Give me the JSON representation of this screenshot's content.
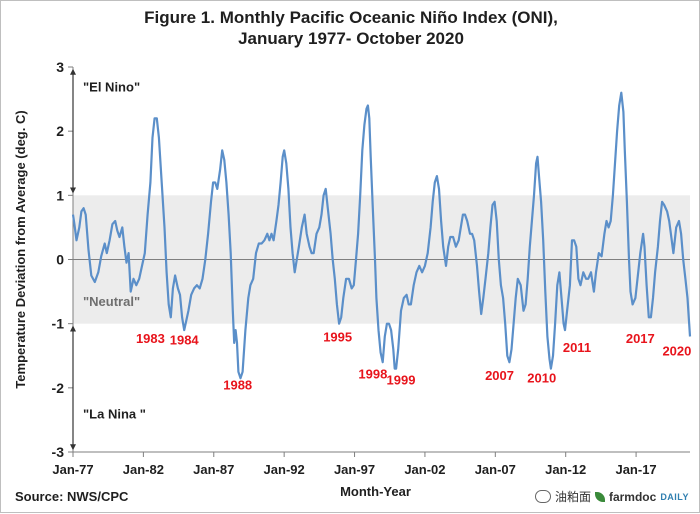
{
  "title_line1": "Figure 1. Monthly Pacific Oceanic Niño Index (ONI),",
  "title_line2": "January 1977- October 2020",
  "source": "Source: NWS/CPC",
  "watermark": "油粕面",
  "brand_name": "farmdoc",
  "brand_suffix": "DAILY",
  "colors": {
    "line": "#5b8fc9",
    "annotation": "#e8141c",
    "neutral_band": "#ececec",
    "arrow": "#333333"
  },
  "chart_data": {
    "type": "line",
    "title": "Figure 1. Monthly Pacific Oceanic Niño Index (ONI), January 1977- October 2020",
    "xlabel": "Month-Year",
    "ylabel": "Temperature Deviation from Average (deg. C)",
    "ylim": [
      -3,
      3
    ],
    "yticks": [
      -3,
      -2,
      -1,
      0,
      1,
      2,
      3
    ],
    "xlim": [
      1977.0,
      2020.83
    ],
    "xticks": [
      {
        "value": 1977,
        "label": "Jan-77"
      },
      {
        "value": 1982,
        "label": "Jan-82"
      },
      {
        "value": 1987,
        "label": "Jan-87"
      },
      {
        "value": 1992,
        "label": "Jan-92"
      },
      {
        "value": 1997,
        "label": "Jan-97"
      },
      {
        "value": 2002,
        "label": "Jan-02"
      },
      {
        "value": 2007,
        "label": "Jan-07"
      },
      {
        "value": 2012,
        "label": "Jan-12"
      },
      {
        "value": 2017,
        "label": "Jan-17"
      }
    ],
    "neutral_band": [
      -1,
      1
    ],
    "zones": [
      {
        "label": "\"El Nino\"",
        "y": 2.7
      },
      {
        "label": "\"Neutral\"",
        "y": -0.65
      },
      {
        "label": "\"La Nina \"",
        "y": -2.4
      }
    ],
    "zone_arrows": [
      [
        3,
        1
      ],
      [
        -1,
        -3
      ]
    ],
    "annotations": [
      {
        "label": "1983",
        "x": 1982.5,
        "y": -1.22
      },
      {
        "label": "1984",
        "x": 1984.9,
        "y": -1.25
      },
      {
        "label": "1988",
        "x": 1988.7,
        "y": -1.95
      },
      {
        "label": "1995",
        "x": 1995.8,
        "y": -1.2
      },
      {
        "label": "1998",
        "x": 1998.3,
        "y": -1.78
      },
      {
        "label": "1999",
        "x": 2000.3,
        "y": -1.87
      },
      {
        "label": "2007",
        "x": 2007.3,
        "y": -1.8
      },
      {
        "label": "2010",
        "x": 2010.3,
        "y": -1.84
      },
      {
        "label": "2011",
        "x": 2012.8,
        "y": -1.36
      },
      {
        "label": "2017",
        "x": 2017.3,
        "y": -1.22
      },
      {
        "label": "2020",
        "x": 2019.9,
        "y": -1.42
      }
    ],
    "series": [
      {
        "name": "ONI",
        "points": [
          [
            1977.0,
            0.7
          ],
          [
            1977.1,
            0.55
          ],
          [
            1977.25,
            0.3
          ],
          [
            1977.45,
            0.5
          ],
          [
            1977.6,
            0.75
          ],
          [
            1977.75,
            0.8
          ],
          [
            1977.9,
            0.7
          ],
          [
            1978.1,
            0.15
          ],
          [
            1978.3,
            -0.25
          ],
          [
            1978.55,
            -0.35
          ],
          [
            1978.8,
            -0.2
          ],
          [
            1979.0,
            0.05
          ],
          [
            1979.25,
            0.25
          ],
          [
            1979.4,
            0.1
          ],
          [
            1979.6,
            0.3
          ],
          [
            1979.8,
            0.55
          ],
          [
            1980.0,
            0.6
          ],
          [
            1980.15,
            0.45
          ],
          [
            1980.3,
            0.35
          ],
          [
            1980.5,
            0.5
          ],
          [
            1980.65,
            0.2
          ],
          [
            1980.8,
            -0.05
          ],
          [
            1980.95,
            0.1
          ],
          [
            1981.1,
            -0.5
          ],
          [
            1981.3,
            -0.3
          ],
          [
            1981.5,
            -0.4
          ],
          [
            1981.7,
            -0.3
          ],
          [
            1981.9,
            -0.1
          ],
          [
            1982.1,
            0.1
          ],
          [
            1982.3,
            0.7
          ],
          [
            1982.5,
            1.2
          ],
          [
            1982.65,
            1.9
          ],
          [
            1982.8,
            2.2
          ],
          [
            1982.95,
            2.2
          ],
          [
            1983.1,
            1.9
          ],
          [
            1983.3,
            1.2
          ],
          [
            1983.5,
            0.5
          ],
          [
            1983.65,
            -0.2
          ],
          [
            1983.8,
            -0.7
          ],
          [
            1983.95,
            -0.9
          ],
          [
            1984.1,
            -0.45
          ],
          [
            1984.25,
            -0.25
          ],
          [
            1984.45,
            -0.45
          ],
          [
            1984.6,
            -0.55
          ],
          [
            1984.75,
            -0.9
          ],
          [
            1984.9,
            -1.1
          ],
          [
            1985.05,
            -0.95
          ],
          [
            1985.2,
            -0.8
          ],
          [
            1985.4,
            -0.55
          ],
          [
            1985.6,
            -0.45
          ],
          [
            1985.8,
            -0.4
          ],
          [
            1986.0,
            -0.45
          ],
          [
            1986.2,
            -0.3
          ],
          [
            1986.4,
            0.0
          ],
          [
            1986.6,
            0.4
          ],
          [
            1986.8,
            0.9
          ],
          [
            1986.95,
            1.2
          ],
          [
            1987.1,
            1.2
          ],
          [
            1987.25,
            1.1
          ],
          [
            1987.45,
            1.4
          ],
          [
            1987.6,
            1.7
          ],
          [
            1987.75,
            1.55
          ],
          [
            1987.9,
            1.2
          ],
          [
            1988.05,
            0.7
          ],
          [
            1988.2,
            0.1
          ],
          [
            1988.35,
            -0.8
          ],
          [
            1988.45,
            -1.3
          ],
          [
            1988.55,
            -1.1
          ],
          [
            1988.65,
            -1.3
          ],
          [
            1988.75,
            -1.75
          ],
          [
            1988.9,
            -1.85
          ],
          [
            1989.05,
            -1.75
          ],
          [
            1989.25,
            -1.1
          ],
          [
            1989.45,
            -0.6
          ],
          [
            1989.6,
            -0.4
          ],
          [
            1989.8,
            -0.3
          ],
          [
            1990.0,
            0.1
          ],
          [
            1990.2,
            0.25
          ],
          [
            1990.4,
            0.25
          ],
          [
            1990.6,
            0.3
          ],
          [
            1990.8,
            0.4
          ],
          [
            1990.95,
            0.3
          ],
          [
            1991.1,
            0.4
          ],
          [
            1991.25,
            0.3
          ],
          [
            1991.45,
            0.6
          ],
          [
            1991.6,
            0.85
          ],
          [
            1991.75,
            1.2
          ],
          [
            1991.9,
            1.6
          ],
          [
            1992.0,
            1.7
          ],
          [
            1992.15,
            1.5
          ],
          [
            1992.3,
            1.1
          ],
          [
            1992.45,
            0.5
          ],
          [
            1992.6,
            0.1
          ],
          [
            1992.75,
            -0.2
          ],
          [
            1992.9,
            0.0
          ],
          [
            1993.05,
            0.2
          ],
          [
            1993.25,
            0.5
          ],
          [
            1993.45,
            0.7
          ],
          [
            1993.6,
            0.4
          ],
          [
            1993.8,
            0.2
          ],
          [
            1993.95,
            0.1
          ],
          [
            1994.1,
            0.1
          ],
          [
            1994.3,
            0.4
          ],
          [
            1994.5,
            0.5
          ],
          [
            1994.65,
            0.7
          ],
          [
            1994.8,
            1.0
          ],
          [
            1994.95,
            1.1
          ],
          [
            1995.1,
            0.8
          ],
          [
            1995.3,
            0.4
          ],
          [
            1995.45,
            0.0
          ],
          [
            1995.6,
            -0.3
          ],
          [
            1995.75,
            -0.7
          ],
          [
            1995.9,
            -1.0
          ],
          [
            1996.05,
            -0.9
          ],
          [
            1996.2,
            -0.6
          ],
          [
            1996.4,
            -0.3
          ],
          [
            1996.6,
            -0.3
          ],
          [
            1996.8,
            -0.45
          ],
          [
            1996.95,
            -0.4
          ],
          [
            1997.1,
            0.0
          ],
          [
            1997.25,
            0.4
          ],
          [
            1997.4,
            1.0
          ],
          [
            1997.55,
            1.7
          ],
          [
            1997.7,
            2.1
          ],
          [
            1997.85,
            2.35
          ],
          [
            1997.95,
            2.4
          ],
          [
            1998.05,
            2.2
          ],
          [
            1998.15,
            1.6
          ],
          [
            1998.3,
            0.8
          ],
          [
            1998.45,
            0.0
          ],
          [
            1998.55,
            -0.6
          ],
          [
            1998.7,
            -1.1
          ],
          [
            1998.85,
            -1.45
          ],
          [
            1999.0,
            -1.6
          ],
          [
            1999.15,
            -1.2
          ],
          [
            1999.3,
            -1.0
          ],
          [
            1999.45,
            -1.0
          ],
          [
            1999.6,
            -1.1
          ],
          [
            1999.75,
            -1.4
          ],
          [
            1999.85,
            -1.7
          ],
          [
            1999.95,
            -1.7
          ],
          [
            2000.1,
            -1.4
          ],
          [
            2000.3,
            -0.8
          ],
          [
            2000.5,
            -0.6
          ],
          [
            2000.7,
            -0.55
          ],
          [
            2000.85,
            -0.7
          ],
          [
            2001.0,
            -0.7
          ],
          [
            2001.2,
            -0.4
          ],
          [
            2001.4,
            -0.2
          ],
          [
            2001.6,
            -0.1
          ],
          [
            2001.8,
            -0.2
          ],
          [
            2002.0,
            -0.1
          ],
          [
            2002.2,
            0.1
          ],
          [
            2002.4,
            0.5
          ],
          [
            2002.55,
            0.9
          ],
          [
            2002.7,
            1.2
          ],
          [
            2002.85,
            1.3
          ],
          [
            2003.0,
            1.1
          ],
          [
            2003.15,
            0.6
          ],
          [
            2003.3,
            0.2
          ],
          [
            2003.5,
            -0.1
          ],
          [
            2003.65,
            0.2
          ],
          [
            2003.8,
            0.35
          ],
          [
            2004.0,
            0.35
          ],
          [
            2004.2,
            0.2
          ],
          [
            2004.4,
            0.3
          ],
          [
            2004.55,
            0.5
          ],
          [
            2004.7,
            0.7
          ],
          [
            2004.85,
            0.7
          ],
          [
            2005.0,
            0.6
          ],
          [
            2005.2,
            0.4
          ],
          [
            2005.35,
            0.4
          ],
          [
            2005.5,
            0.3
          ],
          [
            2005.7,
            -0.1
          ],
          [
            2005.85,
            -0.5
          ],
          [
            2006.0,
            -0.85
          ],
          [
            2006.15,
            -0.6
          ],
          [
            2006.3,
            -0.3
          ],
          [
            2006.5,
            0.1
          ],
          [
            2006.65,
            0.5
          ],
          [
            2006.8,
            0.85
          ],
          [
            2006.95,
            0.9
          ],
          [
            2007.1,
            0.6
          ],
          [
            2007.25,
            0.0
          ],
          [
            2007.4,
            -0.4
          ],
          [
            2007.55,
            -0.6
          ],
          [
            2007.7,
            -1.0
          ],
          [
            2007.85,
            -1.5
          ],
          [
            2008.0,
            -1.6
          ],
          [
            2008.15,
            -1.4
          ],
          [
            2008.3,
            -1.0
          ],
          [
            2008.45,
            -0.6
          ],
          [
            2008.6,
            -0.3
          ],
          [
            2008.8,
            -0.4
          ],
          [
            2009.0,
            -0.8
          ],
          [
            2009.15,
            -0.7
          ],
          [
            2009.3,
            -0.3
          ],
          [
            2009.45,
            0.2
          ],
          [
            2009.6,
            0.6
          ],
          [
            2009.75,
            1.0
          ],
          [
            2009.9,
            1.5
          ],
          [
            2010.0,
            1.6
          ],
          [
            2010.1,
            1.3
          ],
          [
            2010.25,
            0.9
          ],
          [
            2010.4,
            0.3
          ],
          [
            2010.55,
            -0.5
          ],
          [
            2010.7,
            -1.2
          ],
          [
            2010.85,
            -1.55
          ],
          [
            2010.95,
            -1.7
          ],
          [
            2011.1,
            -1.5
          ],
          [
            2011.25,
            -1.0
          ],
          [
            2011.4,
            -0.4
          ],
          [
            2011.55,
            -0.2
          ],
          [
            2011.7,
            -0.6
          ],
          [
            2011.85,
            -1.0
          ],
          [
            2011.95,
            -1.1
          ],
          [
            2012.1,
            -0.8
          ],
          [
            2012.3,
            -0.4
          ],
          [
            2012.45,
            0.3
          ],
          [
            2012.6,
            0.3
          ],
          [
            2012.75,
            0.2
          ],
          [
            2012.9,
            -0.3
          ],
          [
            2013.05,
            -0.4
          ],
          [
            2013.25,
            -0.2
          ],
          [
            2013.45,
            -0.3
          ],
          [
            2013.6,
            -0.3
          ],
          [
            2013.8,
            -0.2
          ],
          [
            2014.0,
            -0.5
          ],
          [
            2014.15,
            -0.2
          ],
          [
            2014.35,
            0.1
          ],
          [
            2014.55,
            0.05
          ],
          [
            2014.75,
            0.4
          ],
          [
            2014.9,
            0.6
          ],
          [
            2015.05,
            0.5
          ],
          [
            2015.2,
            0.6
          ],
          [
            2015.35,
            1.0
          ],
          [
            2015.5,
            1.5
          ],
          [
            2015.65,
            2.0
          ],
          [
            2015.8,
            2.4
          ],
          [
            2015.95,
            2.6
          ],
          [
            2016.1,
            2.3
          ],
          [
            2016.2,
            1.7
          ],
          [
            2016.35,
            0.9
          ],
          [
            2016.5,
            0.0
          ],
          [
            2016.6,
            -0.5
          ],
          [
            2016.75,
            -0.7
          ],
          [
            2016.95,
            -0.6
          ],
          [
            2017.1,
            -0.3
          ],
          [
            2017.3,
            0.1
          ],
          [
            2017.5,
            0.4
          ],
          [
            2017.6,
            0.2
          ],
          [
            2017.75,
            -0.4
          ],
          [
            2017.9,
            -0.9
          ],
          [
            2018.05,
            -0.9
          ],
          [
            2018.2,
            -0.6
          ],
          [
            2018.35,
            -0.2
          ],
          [
            2018.55,
            0.2
          ],
          [
            2018.7,
            0.6
          ],
          [
            2018.85,
            0.9
          ],
          [
            2019.0,
            0.85
          ],
          [
            2019.2,
            0.75
          ],
          [
            2019.35,
            0.6
          ],
          [
            2019.5,
            0.35
          ],
          [
            2019.65,
            0.1
          ],
          [
            2019.85,
            0.5
          ],
          [
            2020.05,
            0.6
          ],
          [
            2020.2,
            0.4
          ],
          [
            2020.35,
            0.0
          ],
          [
            2020.5,
            -0.3
          ],
          [
            2020.65,
            -0.6
          ],
          [
            2020.83,
            -1.2
          ]
        ]
      }
    ]
  }
}
